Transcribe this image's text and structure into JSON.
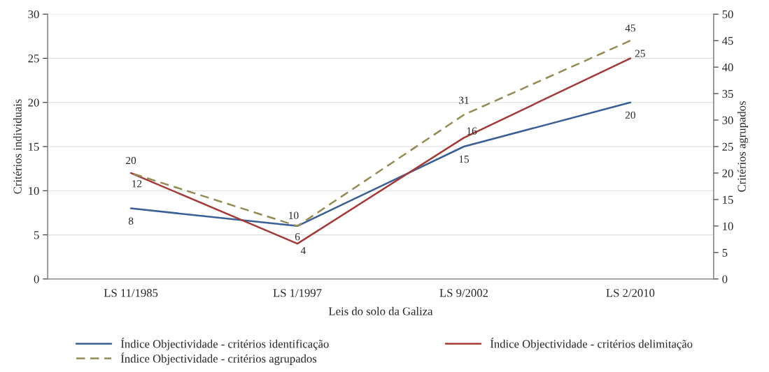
{
  "chart_data": {
    "type": "line",
    "xlabel": "Leis do solo da Galiza",
    "ylabel": "Critérios individuais",
    "y2label": "Critérios agrupados",
    "categories": [
      "LS 11/1985",
      "LS 1/1997",
      "LS 9/2002",
      "LS 2/2010"
    ],
    "series": [
      {
        "name": "Índice Objectividade - critérios identificação",
        "color": "#3a5f97",
        "values": [
          8,
          6,
          15,
          20
        ],
        "line_style": "solid"
      },
      {
        "name": "Índice Objectividade - critérios delimitação",
        "color": "#a33a36",
        "values": [
          12,
          4,
          16,
          25
        ],
        "line_style": "solid"
      },
      {
        "name": "Índice Objectividade - critérios agrupados",
        "color": "#948a54",
        "values": [
          20,
          10,
          31,
          45
        ],
        "axis": "y2",
        "line_style": "dashed"
      }
    ],
    "ylim": [
      0,
      30
    ],
    "yticks": [
      0,
      5,
      10,
      15,
      20,
      25,
      30
    ],
    "y2lim": [
      0,
      50
    ],
    "y2ticks": [
      0,
      5,
      10,
      15,
      20,
      25,
      30,
      35,
      40,
      45,
      50
    ],
    "grid": "y",
    "legend": "bottom",
    "data_labels": true,
    "marker": "none"
  }
}
